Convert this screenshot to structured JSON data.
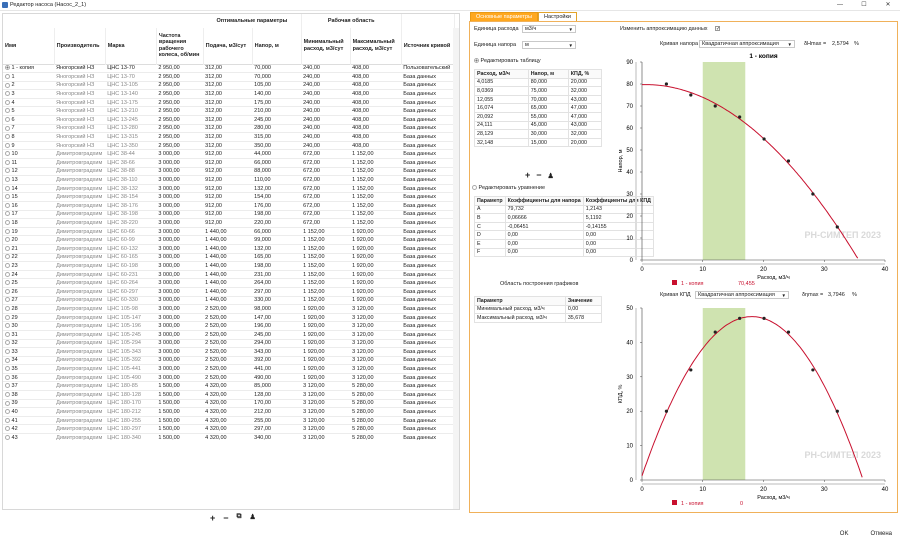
{
  "window": {
    "title": "Редактор насоса (Насос_2_1)",
    "minimize": "—",
    "maximize": "☐",
    "close": "✕"
  },
  "table": {
    "group_headers": {
      "optimal": "Оптимальные параметры",
      "working": "Рабочая область"
    },
    "columns": [
      "Имя",
      "Производитель",
      "Марка",
      "Частота вращения рабочего колеса, об/мин",
      "Подача, м3/сут",
      "Напор, м",
      "Минимальный расход, м3/сут",
      "Максимальный расход, м3/сут",
      "Источник кривой"
    ],
    "rows": [
      [
        "1 - копия",
        "Яногорский НЗ",
        "ЦНС 13-70",
        "2 950,00",
        "312,00",
        "70,000",
        "240,00",
        "408,00",
        "Пользовательский"
      ],
      [
        "1",
        "Яногорский НЗ",
        "ЦНС 13-70",
        "2 950,00",
        "312,00",
        "70,000",
        "240,00",
        "408,00",
        "База данных"
      ],
      [
        "2",
        "Яногорский НЗ",
        "ЦНС 13-105",
        "2 950,00",
        "312,00",
        "105,00",
        "240,00",
        "408,00",
        "База данных"
      ],
      [
        "3",
        "Яногорский НЗ",
        "ЦНС 13-140",
        "2 950,00",
        "312,00",
        "140,00",
        "240,00",
        "408,00",
        "База данных"
      ],
      [
        "4",
        "Яногорский НЗ",
        "ЦНС 13-175",
        "2 950,00",
        "312,00",
        "175,00",
        "240,00",
        "408,00",
        "База данных"
      ],
      [
        "5",
        "Яногорский НЗ",
        "ЦНС 13-210",
        "2 950,00",
        "312,00",
        "210,00",
        "240,00",
        "408,00",
        "База данных"
      ],
      [
        "6",
        "Яногорский НЗ",
        "ЦНС 13-245",
        "2 950,00",
        "312,00",
        "245,00",
        "240,00",
        "408,00",
        "База данных"
      ],
      [
        "7",
        "Яногорский НЗ",
        "ЦНС 13-280",
        "2 950,00",
        "312,00",
        "280,00",
        "240,00",
        "408,00",
        "База данных"
      ],
      [
        "8",
        "Яногорский НЗ",
        "ЦНС 13-315",
        "2 950,00",
        "312,00",
        "315,00",
        "240,00",
        "408,00",
        "База данных"
      ],
      [
        "9",
        "Яногорский НЗ",
        "ЦНС 13-350",
        "2 950,00",
        "312,00",
        "350,00",
        "240,00",
        "408,00",
        "База данных"
      ],
      [
        "10",
        "Димитровградхим",
        "ЦНС 38-44",
        "3 000,00",
        "912,00",
        "44,000",
        "672,00",
        "1 152,00",
        "База данных"
      ],
      [
        "11",
        "Димитровградхим",
        "ЦНС 38-66",
        "3 000,00",
        "912,00",
        "66,000",
        "672,00",
        "1 152,00",
        "База данных"
      ],
      [
        "12",
        "Димитровградхим",
        "ЦНС 38-88",
        "3 000,00",
        "912,00",
        "88,000",
        "672,00",
        "1 152,00",
        "База данных"
      ],
      [
        "13",
        "Димитровградхим",
        "ЦНС 38-110",
        "3 000,00",
        "912,00",
        "110,00",
        "672,00",
        "1 152,00",
        "База данных"
      ],
      [
        "14",
        "Димитровградхим",
        "ЦНС 38-132",
        "3 000,00",
        "912,00",
        "132,00",
        "672,00",
        "1 152,00",
        "База данных"
      ],
      [
        "15",
        "Димитровградхим",
        "ЦНС 38-154",
        "3 000,00",
        "912,00",
        "154,00",
        "672,00",
        "1 152,00",
        "База данных"
      ],
      [
        "16",
        "Димитровградхим",
        "ЦНС 38-176",
        "3 000,00",
        "912,00",
        "176,00",
        "672,00",
        "1 152,00",
        "База данных"
      ],
      [
        "17",
        "Димитровградхим",
        "ЦНС 38-198",
        "3 000,00",
        "912,00",
        "198,00",
        "672,00",
        "1 152,00",
        "База данных"
      ],
      [
        "18",
        "Димитровградхим",
        "ЦНС 38-220",
        "3 000,00",
        "912,00",
        "220,00",
        "672,00",
        "1 152,00",
        "База данных"
      ],
      [
        "19",
        "Димитровградхим",
        "ЦНС 60-66",
        "3 000,00",
        "1 440,00",
        "66,000",
        "1 152,00",
        "1 920,00",
        "База данных"
      ],
      [
        "20",
        "Димитровградхим",
        "ЦНС 60-99",
        "3 000,00",
        "1 440,00",
        "99,000",
        "1 152,00",
        "1 920,00",
        "База данных"
      ],
      [
        "21",
        "Димитровградхим",
        "ЦНС 60-132",
        "3 000,00",
        "1 440,00",
        "132,00",
        "1 152,00",
        "1 920,00",
        "База данных"
      ],
      [
        "22",
        "Димитровградхим",
        "ЦНС 60-165",
        "3 000,00",
        "1 440,00",
        "165,00",
        "1 152,00",
        "1 920,00",
        "База данных"
      ],
      [
        "23",
        "Димитровградхим",
        "ЦНС 60-198",
        "3 000,00",
        "1 440,00",
        "198,00",
        "1 152,00",
        "1 920,00",
        "База данных"
      ],
      [
        "24",
        "Димитровградхим",
        "ЦНС 60-231",
        "3 000,00",
        "1 440,00",
        "231,00",
        "1 152,00",
        "1 920,00",
        "База данных"
      ],
      [
        "25",
        "Димитровградхим",
        "ЦНС 60-264",
        "3 000,00",
        "1 440,00",
        "264,00",
        "1 152,00",
        "1 920,00",
        "База данных"
      ],
      [
        "26",
        "Димитровградхим",
        "ЦНС 60-297",
        "3 000,00",
        "1 440,00",
        "297,00",
        "1 152,00",
        "1 920,00",
        "База данных"
      ],
      [
        "27",
        "Димитровградхим",
        "ЦНС 60-330",
        "3 000,00",
        "1 440,00",
        "330,00",
        "1 152,00",
        "1 920,00",
        "База данных"
      ],
      [
        "28",
        "Димитровградхим",
        "ЦНС 105-98",
        "3 000,00",
        "2 520,00",
        "98,000",
        "1 920,00",
        "3 120,00",
        "База данных"
      ],
      [
        "29",
        "Димитровградхим",
        "ЦНС 105-147",
        "3 000,00",
        "2 520,00",
        "147,00",
        "1 920,00",
        "3 120,00",
        "База данных"
      ],
      [
        "30",
        "Димитровградхим",
        "ЦНС 105-196",
        "3 000,00",
        "2 520,00",
        "196,00",
        "1 920,00",
        "3 120,00",
        "База данных"
      ],
      [
        "31",
        "Димитровградхим",
        "ЦНС 105-245",
        "3 000,00",
        "2 520,00",
        "245,00",
        "1 920,00",
        "3 120,00",
        "База данных"
      ],
      [
        "32",
        "Димитровградхим",
        "ЦНС 105-294",
        "3 000,00",
        "2 520,00",
        "294,00",
        "1 920,00",
        "3 120,00",
        "База данных"
      ],
      [
        "33",
        "Димитровградхим",
        "ЦНС 105-343",
        "3 000,00",
        "2 520,00",
        "343,00",
        "1 920,00",
        "3 120,00",
        "База данных"
      ],
      [
        "34",
        "Димитровградхим",
        "ЦНС 105-392",
        "3 000,00",
        "2 520,00",
        "392,00",
        "1 920,00",
        "3 120,00",
        "База данных"
      ],
      [
        "35",
        "Димитровградхим",
        "ЦНС 105-441",
        "3 000,00",
        "2 520,00",
        "441,00",
        "1 920,00",
        "3 120,00",
        "База данных"
      ],
      [
        "36",
        "Димитровградхим",
        "ЦНС 105-490",
        "3 000,00",
        "2 520,00",
        "490,00",
        "1 920,00",
        "3 120,00",
        "База данных"
      ],
      [
        "37",
        "Димитровградхим",
        "ЦНС 180-85",
        "1 500,00",
        "4 320,00",
        "85,000",
        "3 120,00",
        "5 280,00",
        "База данных"
      ],
      [
        "38",
        "Димитровградхим",
        "ЦНС 180-128",
        "1 500,00",
        "4 320,00",
        "128,00",
        "3 120,00",
        "5 280,00",
        "База данных"
      ],
      [
        "39",
        "Димитровградхим",
        "ЦНС 180-170",
        "1 500,00",
        "4 320,00",
        "170,00",
        "3 120,00",
        "5 280,00",
        "База данных"
      ],
      [
        "40",
        "Димитровградхим",
        "ЦНС 180-212",
        "1 500,00",
        "4 320,00",
        "212,00",
        "3 120,00",
        "5 280,00",
        "База данных"
      ],
      [
        "41",
        "Димитровградхим",
        "ЦНС 180-255",
        "1 500,00",
        "4 320,00",
        "255,00",
        "3 120,00",
        "5 280,00",
        "База данных"
      ],
      [
        "42",
        "Димитровградхим",
        "ЦНС 180-297",
        "1 500,00",
        "4 320,00",
        "297,00",
        "3 120,00",
        "5 280,00",
        "База данных"
      ],
      [
        "43",
        "Димитровградхим",
        "ЦНС 180-340",
        "1 500,00",
        "4 320,00",
        "340,00",
        "3 120,00",
        "5 280,00",
        "База данных"
      ]
    ]
  },
  "bottom_tools": {
    "add": "+",
    "remove": "−",
    "copy": "⧉",
    "clear": "♟"
  },
  "tabs": [
    "Основные параметры",
    "Настройки"
  ],
  "units": {
    "flow_label": "Единица расхода",
    "flow_value": "м3/ч",
    "head_label": "Единица напора",
    "head_value": "м"
  },
  "edit_table_label": "Редактировать таблицу",
  "points_table": {
    "headers": [
      "Расход, м3/ч",
      "Напор, м",
      "КПД, %"
    ],
    "rows": [
      [
        "4,0185",
        "80,000",
        "20,000"
      ],
      [
        "8,0369",
        "75,000",
        "32,000"
      ],
      [
        "12,055",
        "70,000",
        "43,000"
      ],
      [
        "16,074",
        "65,000",
        "47,000"
      ],
      [
        "20,092",
        "55,000",
        "47,000"
      ],
      [
        "24,111",
        "45,000",
        "43,000"
      ],
      [
        "28,129",
        "30,000",
        "32,000"
      ],
      [
        "32,148",
        "15,000",
        "20,000"
      ]
    ]
  },
  "table_tools": {
    "add": "+",
    "remove": "−",
    "clear": "♟"
  },
  "edit_equation_label": "Редактировать уравнение",
  "coef_table": {
    "headers": [
      "Параметр",
      "Коэффициенты для напора",
      "Коэффициенты для КПД"
    ],
    "rows": [
      [
        "A",
        "79,732",
        "1,2143"
      ],
      [
        "B",
        "0,06666",
        "5,1192"
      ],
      [
        "C",
        "-0,06451",
        "-0,14155"
      ],
      [
        "D",
        "0,00",
        "0,00"
      ],
      [
        "E",
        "0,00",
        "0,00"
      ],
      [
        "F",
        "0,00",
        "0,00"
      ]
    ]
  },
  "area_title": "Область построения графиков",
  "area_table": {
    "headers": [
      "Параметр",
      "Значение"
    ],
    "rows": [
      [
        "Минимальный расход, м3/ч",
        "0,00"
      ],
      [
        "Максимальный расход, м3/ч",
        "35,678"
      ]
    ]
  },
  "approx_label": "Изменить аппроксимацию данных",
  "approx_checked": "✓",
  "head_curve": {
    "label": "Кривая напора",
    "value": "Квадратичная аппроксимация",
    "metric_label": "δHmax =",
    "metric_value": "2,5794",
    "metric_unit": "%"
  },
  "eff_curve": {
    "label": "Кривая КПД",
    "value": "Квадратичная аппроксимация",
    "metric_label": "δηmax =",
    "metric_value": "3,7946",
    "metric_unit": "%"
  },
  "watermark": "РН-СИМТЕП 2023",
  "legend": {
    "series": "1 - копия",
    "head_value": "70,455",
    "eff_value": "0"
  },
  "buttons": {
    "ok": "OK",
    "cancel": "Отмена"
  },
  "colors": {
    "accent": "#ffa81f",
    "curve": "#c8102e",
    "band": "#cfe3b0"
  },
  "chart_data": [
    {
      "type": "scatter",
      "title": "1 - копия",
      "xlabel": "Расход, м3/ч",
      "ylabel": "Напор, м",
      "xlim": [
        0,
        40
      ],
      "ylim": [
        0,
        90
      ],
      "xticks": [
        0,
        10,
        20,
        30,
        40
      ],
      "yticks": [
        0,
        10,
        20,
        30,
        40,
        50,
        60,
        70,
        80,
        90
      ],
      "band": [
        10,
        17
      ],
      "series": [
        {
          "name": "1 - копия",
          "points": [
            [
              4.0185,
              80
            ],
            [
              8.0369,
              75
            ],
            [
              12.055,
              70
            ],
            [
              16.074,
              65
            ],
            [
              20.092,
              55
            ],
            [
              24.111,
              45
            ],
            [
              28.129,
              30
            ],
            [
              32.148,
              15
            ]
          ],
          "fit": {
            "a": 79.732,
            "b": 0.06666,
            "c": -0.06451
          }
        }
      ]
    },
    {
      "type": "scatter",
      "title": "",
      "xlabel": "Расход, м3/ч",
      "ylabel": "КПД, %",
      "xlim": [
        0,
        40
      ],
      "ylim": [
        0,
        50
      ],
      "xticks": [
        0,
        10,
        20,
        30,
        40
      ],
      "yticks": [
        0,
        10,
        20,
        30,
        40,
        50
      ],
      "band": [
        10,
        17
      ],
      "series": [
        {
          "name": "1 - копия",
          "points": [
            [
              4.0185,
              20
            ],
            [
              8.0369,
              32
            ],
            [
              12.055,
              43
            ],
            [
              16.074,
              47
            ],
            [
              20.092,
              47
            ],
            [
              24.111,
              43
            ],
            [
              28.129,
              32
            ],
            [
              32.148,
              20
            ]
          ],
          "fit": {
            "a": 1.2143,
            "b": 5.1192,
            "c": -0.14155
          }
        }
      ]
    }
  ]
}
